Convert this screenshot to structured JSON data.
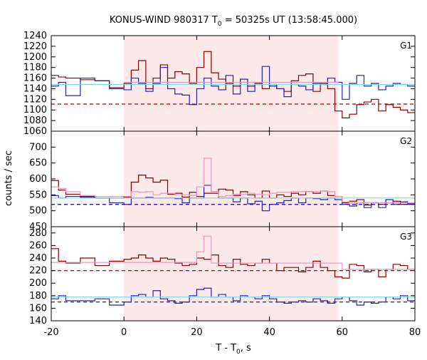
{
  "chart": {
    "title_main": "KONUS-WIND 980317 T",
    "title_sub": "0",
    "title_rest": " = 50325s UT (13:58:45.000)",
    "ylabel": "counts / sec",
    "xlabel_main": "T - T",
    "xlabel_sub": "0",
    "xlabel_rest": ", s"
  },
  "chart_data": {
    "type": "line",
    "title": "KONUS-WIND 980317 T0 = 50325s UT (13:58:45.000)",
    "xlabel": "T - T0, s",
    "ylabel": "counts / sec",
    "xlim": [
      -20,
      80
    ],
    "x_ticks": [
      -20,
      0,
      20,
      40,
      60,
      80
    ],
    "grid": false,
    "highlight_interval": [
      0,
      59
    ],
    "highlight_color": "#fde8ea",
    "bin_edges": [
      -20,
      -18,
      -16,
      -12,
      -8,
      -4,
      0,
      2,
      4,
      6,
      8,
      10,
      12,
      14,
      16,
      18,
      20,
      22,
      24,
      26,
      28,
      30,
      32,
      34,
      36,
      38,
      40,
      42,
      44,
      46,
      48,
      50,
      52,
      54,
      56,
      58,
      60,
      62,
      64,
      66,
      68,
      70,
      72,
      74,
      76,
      78,
      80
    ],
    "panels": [
      {
        "label": "G1",
        "ylim": [
          1060,
          1240
        ],
        "y_ticks": [
          1060,
          1080,
          1100,
          1120,
          1140,
          1160,
          1180,
          1200,
          1220,
          1240
        ],
        "series": [
          {
            "color": "#8b0000",
            "style": "step",
            "values": [
              1165,
              1162,
              1160,
              1157,
              1155,
              1142,
              1150,
              1175,
              1193,
              1140,
              1160,
              1185,
              1160,
              1172,
              1168,
              1150,
              1180,
              1210,
              1170,
              1158,
              1150,
              1145,
              1158,
              1145,
              1150,
              1140,
              1148,
              1140,
              1135,
              1155,
              1165,
              1168,
              1135,
              1150,
              1140,
              1098,
              1085,
              1092,
              1110,
              1115,
              1120,
              1098,
              1110,
              1105,
              1100,
              1095
            ]
          },
          {
            "color": "#2222aa",
            "style": "step",
            "values": [
              1145,
              1152,
              1127,
              1160,
              1155,
              1140,
              1138,
              1160,
              1150,
              1135,
              1150,
              1180,
              1140,
              1130,
              1128,
              1110,
              1140,
              1160,
              1145,
              1138,
              1165,
              1130,
              1158,
              1135,
              1148,
              1182,
              1145,
              1140,
              1125,
              1148,
              1145,
              1138,
              1150,
              1148,
              1160,
              1152,
              1120,
              1150,
              1165,
              1145,
              1150,
              1138,
              1145,
              1150,
              1148,
              1145
            ]
          },
          {
            "color": "#e898c0",
            "style": "step",
            "x": [
              0,
              59
            ],
            "values": [
              1152
            ]
          },
          {
            "color": "#7fd8f0",
            "style": "line",
            "x": [
              -20,
              80
            ],
            "y": [
              1148,
              1148
            ]
          },
          {
            "color": "#b00000",
            "style": "dashed",
            "x": [
              -20,
              80
            ],
            "y": [
              1111,
              1111
            ]
          }
        ]
      },
      {
        "label": "G2",
        "ylim": [
          450,
          750
        ],
        "y_ticks": [
          450,
          500,
          550,
          600,
          650,
          700
        ],
        "series": [
          {
            "color": "#8b0000",
            "style": "step",
            "values": [
              595,
              565,
              552,
              545,
              540,
              540,
              543,
              590,
              612,
              603,
              590,
              596,
              552,
              555,
              543,
              558,
              545,
              555,
              555,
              568,
              565,
              548,
              560,
              550,
              540,
              562,
              540,
              550,
              545,
              555,
              550,
              560,
              555,
              562,
              548,
              545,
              525,
              530,
              535,
              518,
              525,
              520,
              525,
              530,
              520,
              522
            ]
          },
          {
            "color": "#2222aa",
            "style": "step",
            "values": [
              548,
              540,
              545,
              542,
              540,
              525,
              520,
              540,
              540,
              542,
              540,
              540,
              540,
              538,
              525,
              540,
              540,
              580,
              560,
              540,
              540,
              528,
              540,
              522,
              530,
              500,
              520,
              525,
              532,
              540,
              525,
              540,
              538,
              535,
              540,
              535,
              520,
              515,
              525,
              510,
              525,
              510,
              535,
              520,
              528,
              520
            ]
          },
          {
            "color": "#e898c0",
            "style": "step",
            "values": [
              575,
              570,
              560,
              548,
              545,
              545,
              545,
              560,
              558,
              560,
              550,
              555,
              555,
              550,
              550,
              548,
              575,
              665,
              560,
              545,
              548,
              552,
              552,
              555,
              552,
              550,
              555,
              558,
              558,
              560,
              560,
              560,
              560,
              562,
              560,
              545,
              528,
              525,
              525,
              525,
              525,
              525,
              525,
              525,
              525,
              525
            ]
          },
          {
            "color": "#7fd8f0",
            "style": "line",
            "x": [
              -20,
              80
            ],
            "y": [
              540,
              540
            ]
          },
          {
            "color": "#b00000",
            "style": "dashed",
            "x": [
              -20,
              80
            ],
            "y": [
              520,
              520
            ]
          },
          {
            "color": "#2222aa",
            "style": "dashed",
            "x": [
              -20,
              80
            ],
            "y": [
              520,
              520
            ]
          }
        ]
      },
      {
        "label": "G3",
        "ylim": [
          140,
          290
        ],
        "y_ticks": [
          140,
          160,
          180,
          200,
          220,
          240,
          260,
          280
        ],
        "series": [
          {
            "color": "#8b0000",
            "style": "step",
            "values": [
              255,
              235,
              232,
              240,
              228,
              235,
              238,
              240,
              245,
              240,
              235,
              240,
              238,
              232,
              228,
              230,
              240,
              238,
              245,
              228,
              225,
              238,
              230,
              228,
              232,
              238,
              232,
              220,
              225,
              225,
              218,
              225,
              235,
              225,
              220,
              210,
              208,
              230,
              228,
              218,
              222,
              210,
              222,
              230,
              228,
              222
            ]
          },
          {
            "color": "#2222aa",
            "style": "step",
            "values": [
              175,
              180,
              172,
              172,
              175,
              165,
              170,
              180,
              182,
              178,
              188,
              175,
              172,
              168,
              170,
              180,
              190,
              192,
              178,
              182,
              178,
              172,
              180,
              178,
              175,
              180,
              175,
              170,
              168,
              170,
              172,
              170,
              175,
              172,
              168,
              175,
              178,
              172,
              165,
              170,
              168,
              170,
              178,
              175,
              180,
              172
            ]
          },
          {
            "color": "#e898c0",
            "style": "step",
            "values": [
              233,
              233,
              233,
              233,
              233,
              233,
              233,
              233,
              233,
              233,
              233,
              233,
              233,
              233,
              233,
              233,
              250,
              275,
              232,
              232,
              232,
              232,
              232,
              232,
              232,
              232,
              232,
              232,
              232,
              232,
              232,
              232,
              232,
              232,
              232,
              232,
              222,
              222,
              222,
              222,
              222,
              222,
              222,
              222,
              222,
              222
            ]
          },
          {
            "color": "#7fd8f0",
            "style": "line",
            "x": [
              -20,
              80
            ],
            "y": [
              178,
              178
            ]
          },
          {
            "color": "#b00000",
            "style": "dashed",
            "x": [
              -20,
              80
            ],
            "y": [
              220,
              220
            ]
          },
          {
            "color": "#2222aa",
            "style": "dashed",
            "x": [
              -20,
              80
            ],
            "y": [
              170,
              170
            ]
          }
        ]
      }
    ]
  }
}
